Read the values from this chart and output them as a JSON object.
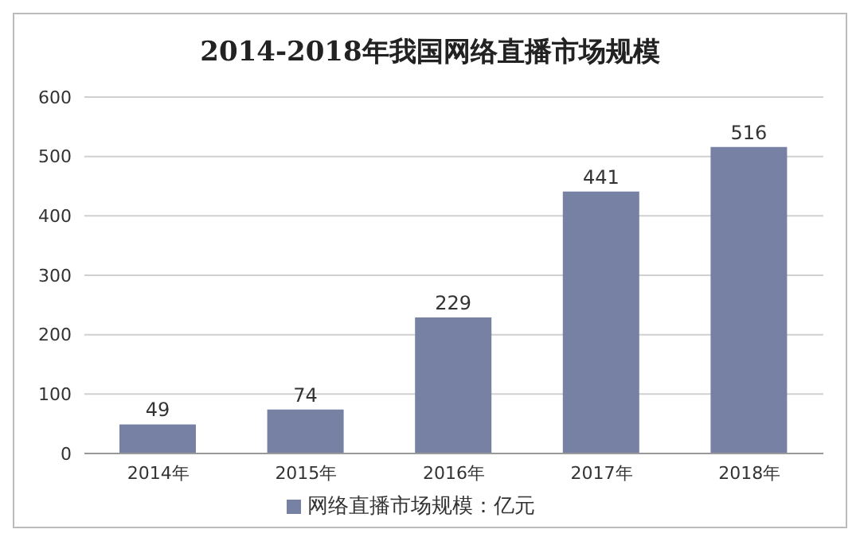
{
  "chart_data": {
    "type": "bar",
    "title": "2014-2018年我国网络直播市场规模",
    "categories": [
      "2014年",
      "2015年",
      "2016年",
      "2017年",
      "2018年"
    ],
    "series": [
      {
        "name": "网络直播市场规模：亿元",
        "color": "#7681a3",
        "values": [
          49,
          74,
          229,
          441,
          516
        ]
      }
    ],
    "ylim": [
      0,
      600
    ],
    "yticks": [
      0,
      100,
      200,
      300,
      400,
      500,
      600
    ],
    "grid": "y",
    "legend": "bottom",
    "data_labels": true
  }
}
